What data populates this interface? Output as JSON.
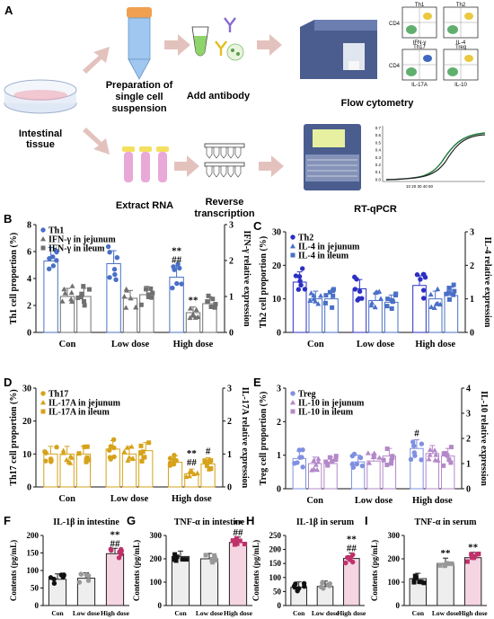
{
  "schematic": {
    "panel_letter": "A",
    "tissue_label": "Intestinal tissue",
    "row1_steps": [
      "Preparation of single cell suspension",
      "Add antibody",
      "Flow cytometry"
    ],
    "row2_steps": [
      "Extract RNA",
      "Reverse transcription",
      "RT-qPCR"
    ],
    "flow_plots": [
      {
        "title": "Th1",
        "y": "CD4",
        "x": "IFN-γ"
      },
      {
        "title": "Th2",
        "y": "",
        "x": "IL-4"
      },
      {
        "title": "Th17",
        "y": "CD4",
        "x": "IL-17A"
      },
      {
        "title": "Treg",
        "y": "",
        "x": "IL-10"
      }
    ],
    "pcr_y_ticks": [
      "0.7",
      "0.6",
      "0.5",
      "0.4",
      "0.3",
      "0.2",
      "0.1",
      "0.0"
    ],
    "pcr_x_ticks": "10 20 30 40 50",
    "colors": {
      "arrow": "#e3c2bd",
      "tube_cap": "#f0a050",
      "tube_body": "#9fc7ef",
      "rna_tube": "#e9a9d8",
      "rna_cap": "#f3e060",
      "machine": "#4a5d8e"
    }
  },
  "chart_data": [
    {
      "panel": "B",
      "type": "bar",
      "categories": [
        "Con",
        "Low dose",
        "High dose"
      ],
      "ylabel": "Th1 cell proportion (%)",
      "ylim": [
        0,
        8
      ],
      "yticks": [
        0,
        2,
        4,
        6,
        8
      ],
      "y2label": "IFN-γ relative expression",
      "y2lim": [
        0,
        3
      ],
      "y2ticks": [
        0,
        1,
        2,
        3
      ],
      "series": [
        {
          "name": "Th1",
          "axis": "left",
          "marker": "circle",
          "color": "#4a70c6",
          "values": [
            5.3,
            5.1,
            4.1
          ]
        },
        {
          "name": "IFN-γ in jejunum",
          "axis": "right",
          "marker": "triangle",
          "color": "#707070",
          "values": [
            1.0,
            0.95,
            0.55
          ]
        },
        {
          "name": "IFN-γ in ileum",
          "axis": "right",
          "marker": "square",
          "color": "#707070",
          "values": [
            1.0,
            1.05,
            0.8
          ]
        }
      ],
      "annotations": [
        {
          "category": 2,
          "series": 0,
          "lines": [
            "**",
            "##"
          ]
        },
        {
          "category": 2,
          "series": 1,
          "lines": [
            "**"
          ]
        }
      ],
      "legend": "top-left"
    },
    {
      "panel": "C",
      "type": "bar",
      "categories": [
        "Con",
        "Low dose",
        "High dose"
      ],
      "ylabel": "Th2 cell proportion (%)",
      "ylim": [
        0,
        30
      ],
      "yticks": [
        0,
        10,
        20,
        30
      ],
      "y2label": "IL-4 relative expression",
      "y2lim": [
        0,
        3
      ],
      "y2ticks": [
        0,
        1,
        2,
        3
      ],
      "series": [
        {
          "name": "Th2",
          "axis": "left",
          "marker": "circle",
          "color": "#2b2fc4",
          "values": [
            15,
            13,
            14
          ]
        },
        {
          "name": "IL-4 in jejunum",
          "axis": "right",
          "marker": "triangle",
          "color": "#4a70c6",
          "values": [
            1.0,
            0.95,
            1.0
          ]
        },
        {
          "name": "IL-4 in ileum",
          "axis": "right",
          "marker": "square",
          "color": "#4a70c6",
          "values": [
            1.0,
            0.9,
            1.1
          ]
        }
      ],
      "annotations": [],
      "legend": "top-left"
    },
    {
      "panel": "D",
      "type": "bar",
      "categories": [
        "Con",
        "Low dose",
        "High dose"
      ],
      "ylabel": "Th17 cell proportion (%)",
      "ylim": [
        0,
        30
      ],
      "yticks": [
        0,
        10,
        20,
        30
      ],
      "y2label": "IL-17A relative expression",
      "y2lim": [
        0,
        3
      ],
      "y2ticks": [
        0,
        1,
        2,
        3
      ],
      "series": [
        {
          "name": "Th17",
          "axis": "left",
          "marker": "circle",
          "color": "#d6a21a",
          "values": [
            10,
            11.5,
            7.5
          ]
        },
        {
          "name": "IL-17A in jejunum",
          "axis": "right",
          "marker": "triangle",
          "color": "#d6a21a",
          "values": [
            1.0,
            1.0,
            0.4
          ]
        },
        {
          "name": "IL-17A in ileum",
          "axis": "right",
          "marker": "square",
          "color": "#d6a21a",
          "values": [
            1.0,
            1.1,
            0.7
          ]
        }
      ],
      "annotations": [
        {
          "category": 2,
          "series": 1,
          "lines": [
            "**",
            "##"
          ]
        },
        {
          "category": 2,
          "series": 2,
          "lines": [
            "#"
          ]
        }
      ],
      "legend": "top-left"
    },
    {
      "panel": "E",
      "type": "bar",
      "categories": [
        "Con",
        "Low dose",
        "High dose"
      ],
      "ylabel": "Treg cell proportion (%)",
      "ylim": [
        0,
        3
      ],
      "yticks": [
        0,
        1,
        2,
        3
      ],
      "y2label": "IL-10 relative expression",
      "y2lim": [
        0,
        4
      ],
      "y2ticks": [
        0,
        1,
        2,
        3,
        4
      ],
      "series": [
        {
          "name": "Treg",
          "axis": "left",
          "marker": "circle",
          "color": "#8090e0",
          "values": [
            0.9,
            0.8,
            1.2
          ]
        },
        {
          "name": "IL-10 in jejunum",
          "axis": "right",
          "marker": "triangle",
          "color": "#b488c8",
          "values": [
            1.0,
            1.1,
            1.4
          ]
        },
        {
          "name": "IL-10 in ileum",
          "axis": "right",
          "marker": "square",
          "color": "#b488c8",
          "values": [
            1.0,
            1.3,
            1.3
          ]
        }
      ],
      "annotations": [
        {
          "category": 2,
          "series": 0,
          "lines": [
            "#"
          ]
        }
      ],
      "legend": "top-left"
    },
    {
      "panel": "F",
      "type": "bar",
      "title": "IL-1β in intestine",
      "categories": [
        "Con",
        "Low dose",
        "High dose"
      ],
      "ylabel": "Contents (pg/mL)",
      "ylim": [
        0,
        200
      ],
      "yticks": [
        0,
        50,
        100,
        150,
        200
      ],
      "values": [
        75,
        78,
        148
      ],
      "color": "#222222",
      "fill": "#ececec",
      "marker": "circle",
      "annotations": [
        {
          "category": 2,
          "lines": [
            "**",
            "##"
          ]
        }
      ]
    },
    {
      "panel": "G",
      "type": "bar",
      "title": "TNF-α in intestine",
      "categories": [
        "Con",
        "Low dose",
        "High dose"
      ],
      "ylabel": "Contents (pg/mL)",
      "ylim": [
        0,
        300
      ],
      "yticks": [
        0,
        100,
        200,
        300
      ],
      "values": [
        210,
        200,
        270
      ],
      "color": "#222222",
      "fill": "#ececec",
      "marker": "square",
      "annotations": [
        {
          "category": 2,
          "lines": [
            "**",
            "##"
          ]
        }
      ]
    },
    {
      "panel": "H",
      "type": "bar",
      "title": "IL-1β in serum",
      "categories": [
        "Con",
        "Low dose",
        "High dose"
      ],
      "ylabel": "Contents (pg/mL)",
      "ylim": [
        0,
        250
      ],
      "yticks": [
        0,
        50,
        100,
        150,
        200,
        250
      ],
      "values": [
        65,
        68,
        168
      ],
      "color": "#222222",
      "fill": "#ececec",
      "marker": "circle",
      "annotations": [
        {
          "category": 2,
          "lines": [
            "**",
            "##"
          ]
        }
      ]
    },
    {
      "panel": "I",
      "type": "bar",
      "title": "TNF-α in serum",
      "categories": [
        "Con",
        "Low dose",
        "High dose"
      ],
      "ylabel": "Contents (pg/mL)",
      "ylim": [
        0,
        300
      ],
      "yticks": [
        0,
        100,
        200,
        300
      ],
      "values": [
        115,
        180,
        205
      ],
      "color": "#222222",
      "fill": "#ececec",
      "marker": "square",
      "annotations": [
        {
          "category": 2,
          "lines": [
            "**"
          ]
        },
        {
          "category": 1,
          "lines": [
            "**"
          ]
        }
      ]
    }
  ]
}
